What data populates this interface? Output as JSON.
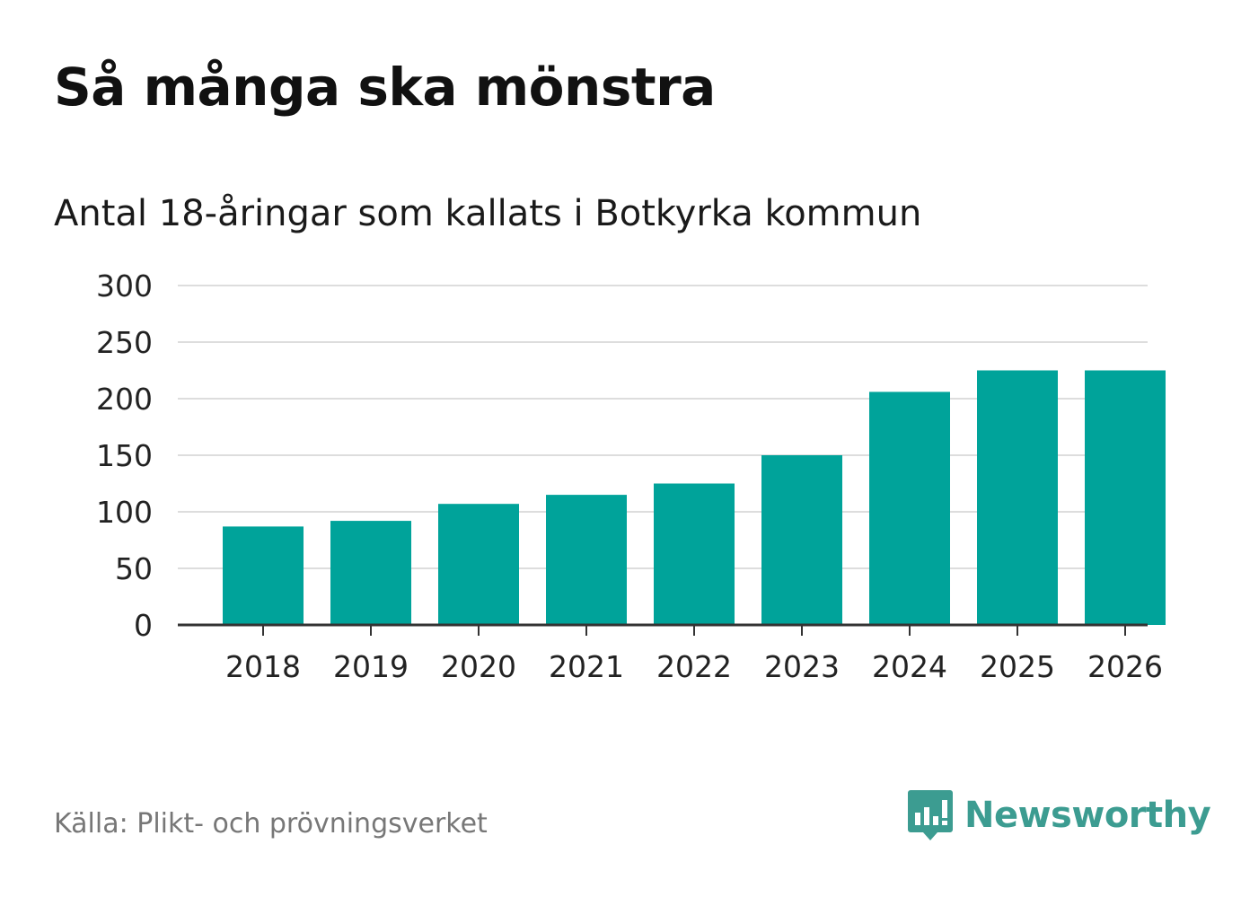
{
  "header": {
    "title": "Så många ska mönstra",
    "subtitle": "Antal 18-åringar som kallats i Botkyrka kommun"
  },
  "footer": {
    "source": "Källa: Plikt- och prövningsverket",
    "brand": "Newsworthy"
  },
  "icons": {
    "logo": "bar-chart-speech-bubble-icon"
  },
  "colors": {
    "bar": "#00a39a",
    "grid": "#dddddd",
    "axis": "#333333",
    "brand": "#3c9c91"
  },
  "chart_data": {
    "type": "bar",
    "title": "Så många ska mönstra",
    "subtitle": "Antal 18-åringar som kallats i Botkyrka kommun",
    "xlabel": "",
    "ylabel": "",
    "categories": [
      "2018",
      "2019",
      "2020",
      "2021",
      "2022",
      "2023",
      "2024",
      "2025",
      "2026"
    ],
    "values": [
      87,
      92,
      107,
      115,
      125,
      150,
      206,
      225,
      225
    ],
    "ylim": [
      0,
      300
    ],
    "yticks": [
      0,
      50,
      100,
      150,
      200,
      250,
      300
    ],
    "grid": true,
    "legend": "none"
  }
}
